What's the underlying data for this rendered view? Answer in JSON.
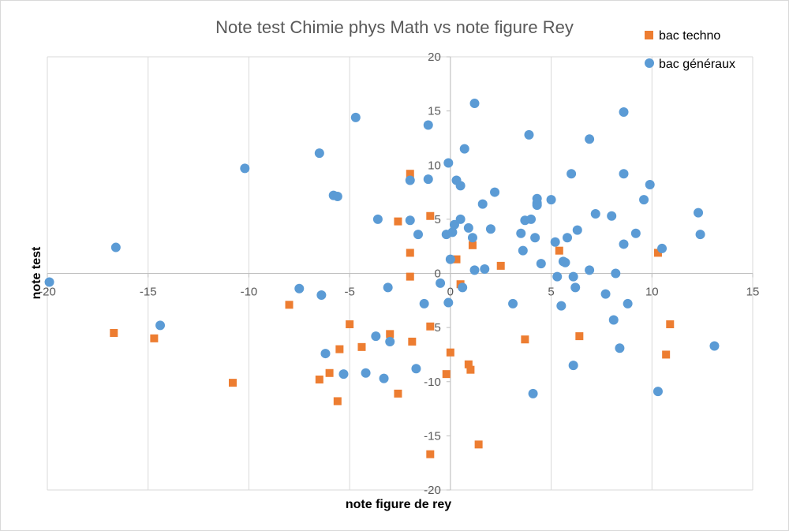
{
  "chart_data": {
    "type": "scatter",
    "title": "Note test Chimie phys Math vs note figure Rey",
    "xlabel": "note figure de rey",
    "ylabel": "note test",
    "xlim": [
      -20,
      15
    ],
    "ylim": [
      -20,
      20
    ],
    "xticks": [
      -20,
      -15,
      -10,
      -5,
      0,
      5,
      10,
      15
    ],
    "yticks": [
      -20,
      -15,
      -10,
      -5,
      0,
      5,
      10,
      15,
      20
    ],
    "x_tick_labels": [
      "-20",
      "-15",
      "-10",
      "-5",
      "0",
      "5",
      "10",
      "15"
    ],
    "y_tick_labels": [
      "-20",
      "-15",
      "-10",
      "-5",
      "0",
      "5",
      "10",
      "15",
      "20"
    ],
    "grid": "vertical-major",
    "legend": "top-right",
    "series": [
      {
        "name": "bac techno",
        "marker": "square",
        "color": "#ED7D31",
        "points": [
          [
            -16.7,
            -5.5
          ],
          [
            -14.7,
            -6.0
          ],
          [
            -10.8,
            -10.1
          ],
          [
            -8.0,
            -2.9
          ],
          [
            -6.5,
            -9.8
          ],
          [
            -6.0,
            -9.2
          ],
          [
            -5.6,
            -11.8
          ],
          [
            -5.5,
            -7.0
          ],
          [
            -5.0,
            -4.7
          ],
          [
            -4.4,
            -6.8
          ],
          [
            -3.0,
            -5.6
          ],
          [
            -2.6,
            -11.1
          ],
          [
            -2.6,
            4.8
          ],
          [
            -2.0,
            9.2
          ],
          [
            -2.0,
            1.9
          ],
          [
            -2.0,
            -0.3
          ],
          [
            -1.9,
            -6.3
          ],
          [
            -1.0,
            5.3
          ],
          [
            -1.0,
            -4.9
          ],
          [
            -1.0,
            -16.7
          ],
          [
            -0.2,
            -9.3
          ],
          [
            0.0,
            -7.3
          ],
          [
            0.3,
            1.3
          ],
          [
            0.5,
            -1.0
          ],
          [
            0.9,
            -8.4
          ],
          [
            1.0,
            -8.9
          ],
          [
            1.1,
            2.6
          ],
          [
            1.4,
            -15.8
          ],
          [
            2.5,
            0.7
          ],
          [
            3.7,
            -6.1
          ],
          [
            5.4,
            2.1
          ],
          [
            6.4,
            -5.8
          ],
          [
            10.3,
            1.9
          ],
          [
            10.7,
            -7.5
          ],
          [
            10.9,
            -4.7
          ]
        ]
      },
      {
        "name": "bac généraux",
        "marker": "circle",
        "color": "#5B9BD5",
        "points": [
          [
            -19.9,
            -0.8
          ],
          [
            -16.6,
            2.4
          ],
          [
            -14.4,
            -4.8
          ],
          [
            -10.2,
            9.7
          ],
          [
            -7.5,
            -1.4
          ],
          [
            -6.5,
            11.1
          ],
          [
            -6.4,
            -2.0
          ],
          [
            -6.2,
            -7.4
          ],
          [
            -5.8,
            7.2
          ],
          [
            -5.6,
            7.1
          ],
          [
            -5.3,
            -9.3
          ],
          [
            -4.7,
            14.4
          ],
          [
            -4.2,
            -9.2
          ],
          [
            -3.7,
            -5.8
          ],
          [
            -3.6,
            5.0
          ],
          [
            -3.3,
            -9.7
          ],
          [
            -3.1,
            -1.3
          ],
          [
            -3.0,
            -6.3
          ],
          [
            -2.0,
            8.6
          ],
          [
            -2.0,
            4.9
          ],
          [
            -1.7,
            -8.8
          ],
          [
            -1.6,
            3.6
          ],
          [
            -1.3,
            -2.8
          ],
          [
            -1.1,
            13.7
          ],
          [
            -1.1,
            8.7
          ],
          [
            -0.5,
            -0.9
          ],
          [
            -0.2,
            3.6
          ],
          [
            -0.1,
            10.2
          ],
          [
            -0.1,
            -2.7
          ],
          [
            0.0,
            1.3
          ],
          [
            0.1,
            3.8
          ],
          [
            0.2,
            4.5
          ],
          [
            0.3,
            8.6
          ],
          [
            0.5,
            8.1
          ],
          [
            0.5,
            5.0
          ],
          [
            0.6,
            -1.3
          ],
          [
            0.7,
            11.5
          ],
          [
            0.9,
            4.2
          ],
          [
            1.1,
            3.3
          ],
          [
            1.2,
            15.7
          ],
          [
            1.2,
            0.3
          ],
          [
            1.6,
            6.4
          ],
          [
            1.7,
            0.4
          ],
          [
            2.0,
            4.1
          ],
          [
            2.2,
            7.5
          ],
          [
            3.1,
            -2.8
          ],
          [
            3.5,
            3.7
          ],
          [
            3.6,
            2.1
          ],
          [
            3.7,
            4.9
          ],
          [
            3.9,
            12.8
          ],
          [
            4.0,
            5.0
          ],
          [
            4.1,
            -11.1
          ],
          [
            4.2,
            3.3
          ],
          [
            4.3,
            6.5
          ],
          [
            4.3,
            6.3
          ],
          [
            4.3,
            6.9
          ],
          [
            4.5,
            0.9
          ],
          [
            5.0,
            6.8
          ],
          [
            5.2,
            2.9
          ],
          [
            5.3,
            -0.3
          ],
          [
            5.5,
            -3.0
          ],
          [
            5.6,
            1.1
          ],
          [
            5.7,
            1.0
          ],
          [
            5.8,
            3.3
          ],
          [
            6.0,
            9.2
          ],
          [
            6.1,
            -0.3
          ],
          [
            6.1,
            -8.5
          ],
          [
            6.2,
            -1.3
          ],
          [
            6.3,
            4.0
          ],
          [
            6.9,
            12.4
          ],
          [
            6.9,
            0.3
          ],
          [
            7.2,
            5.5
          ],
          [
            7.7,
            -1.9
          ],
          [
            8.0,
            5.3
          ],
          [
            8.1,
            -4.3
          ],
          [
            8.2,
            0.0
          ],
          [
            8.4,
            -6.9
          ],
          [
            8.6,
            9.2
          ],
          [
            8.6,
            2.7
          ],
          [
            8.6,
            14.9
          ],
          [
            8.8,
            -2.8
          ],
          [
            9.2,
            3.7
          ],
          [
            9.6,
            6.8
          ],
          [
            9.9,
            8.2
          ],
          [
            10.3,
            -10.9
          ],
          [
            10.5,
            2.3
          ],
          [
            12.3,
            5.6
          ],
          [
            12.4,
            3.6
          ],
          [
            13.1,
            -6.7
          ]
        ]
      }
    ]
  }
}
